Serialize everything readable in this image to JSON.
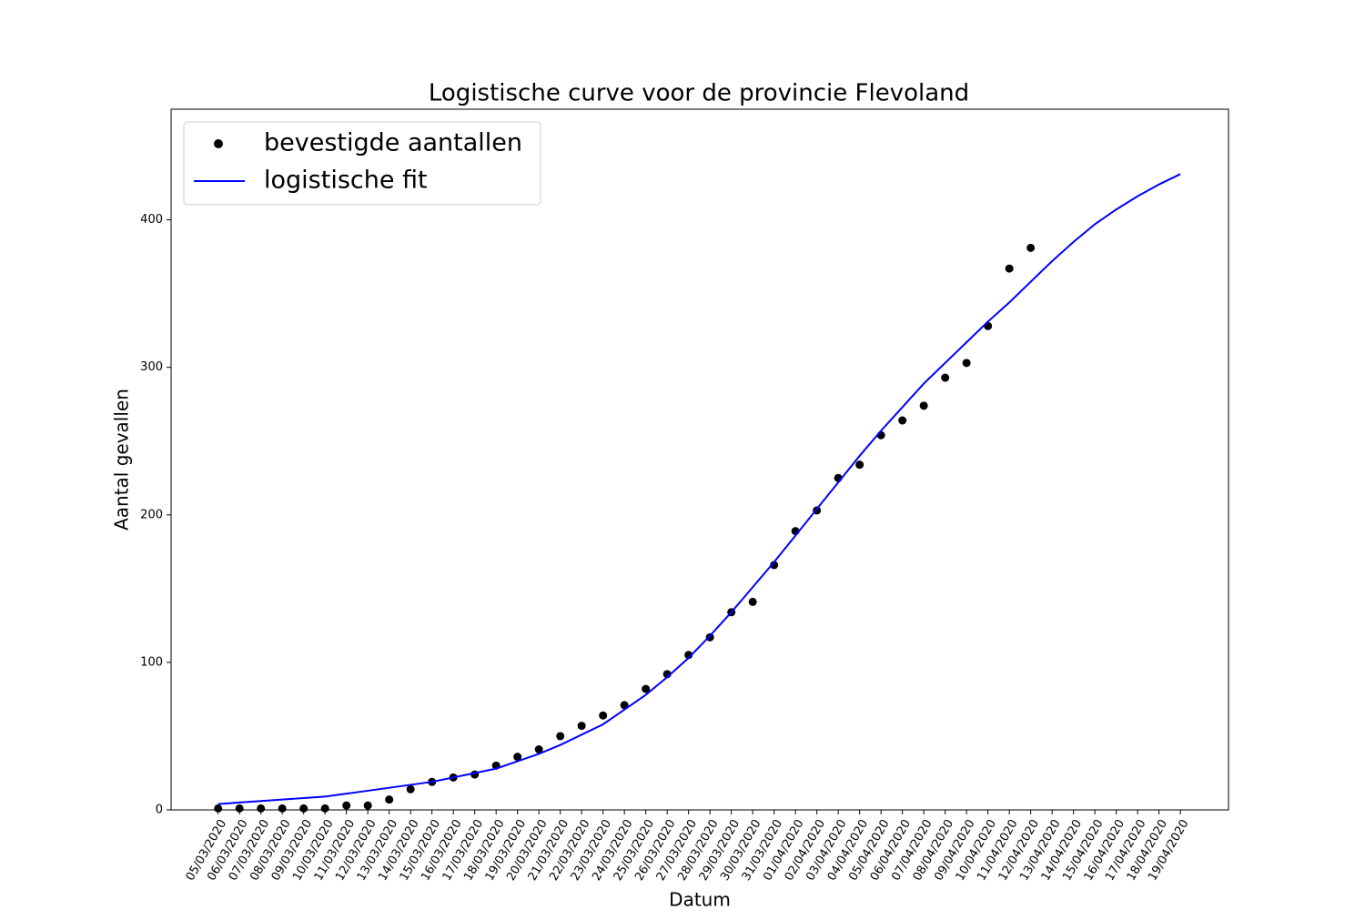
{
  "chart_data": {
    "type": "line",
    "title": "Logistische curve voor de provincie Flevoland",
    "xlabel": "Datum",
    "ylabel": "Aantal gevallen",
    "categories": [
      "05/03/2020",
      "06/03/2020",
      "07/03/2020",
      "08/03/2020",
      "09/03/2020",
      "10/03/2020",
      "11/03/2020",
      "12/03/2020",
      "13/03/2020",
      "14/03/2020",
      "15/03/2020",
      "16/03/2020",
      "17/03/2020",
      "18/03/2020",
      "19/03/2020",
      "20/03/2020",
      "21/03/2020",
      "22/03/2020",
      "23/03/2020",
      "24/03/2020",
      "25/03/2020",
      "26/03/2020",
      "27/03/2020",
      "28/03/2020",
      "29/03/2020",
      "30/03/2020",
      "31/03/2020",
      "01/04/2020",
      "02/04/2020",
      "03/04/2020",
      "04/04/2020",
      "05/04/2020",
      "06/04/2020",
      "07/04/2020",
      "08/04/2020",
      "09/04/2020",
      "10/04/2020",
      "11/04/2020",
      "12/04/2020",
      "13/04/2020",
      "14/04/2020",
      "15/04/2020",
      "16/04/2020",
      "17/04/2020",
      "18/04/2020",
      "19/04/2020"
    ],
    "series": [
      {
        "name": "bevestigde aantallen",
        "color": "#000000",
        "marker": "o",
        "values": [
          1,
          1,
          1,
          1,
          1,
          1,
          3,
          3,
          7,
          14,
          19,
          22,
          24,
          30,
          36,
          41,
          50,
          57,
          64,
          71,
          82,
          92,
          105,
          117,
          134,
          141,
          166,
          189,
          203,
          225,
          234,
          254,
          264,
          274,
          293,
          303,
          328,
          367,
          381,
          null,
          null,
          null,
          null,
          null,
          null,
          null
        ]
      },
      {
        "name": "logistische fit",
        "color": "#0000ff",
        "values": [
          4,
          5,
          6,
          7,
          8,
          9,
          11,
          13,
          15,
          17,
          19,
          22,
          25,
          28,
          33,
          38,
          44,
          51,
          58,
          68,
          78,
          90,
          103,
          118,
          134,
          151,
          168,
          186,
          204,
          222,
          240,
          257,
          273,
          289,
          303,
          317,
          331,
          344,
          358,
          372,
          385,
          397,
          407,
          416,
          424,
          431
        ]
      }
    ],
    "xlim": [
      -2.2,
      47.25
    ],
    "ylim": [
      0,
      475
    ],
    "yticks": [
      0,
      100,
      200,
      300,
      400
    ],
    "legend": "upper left"
  }
}
